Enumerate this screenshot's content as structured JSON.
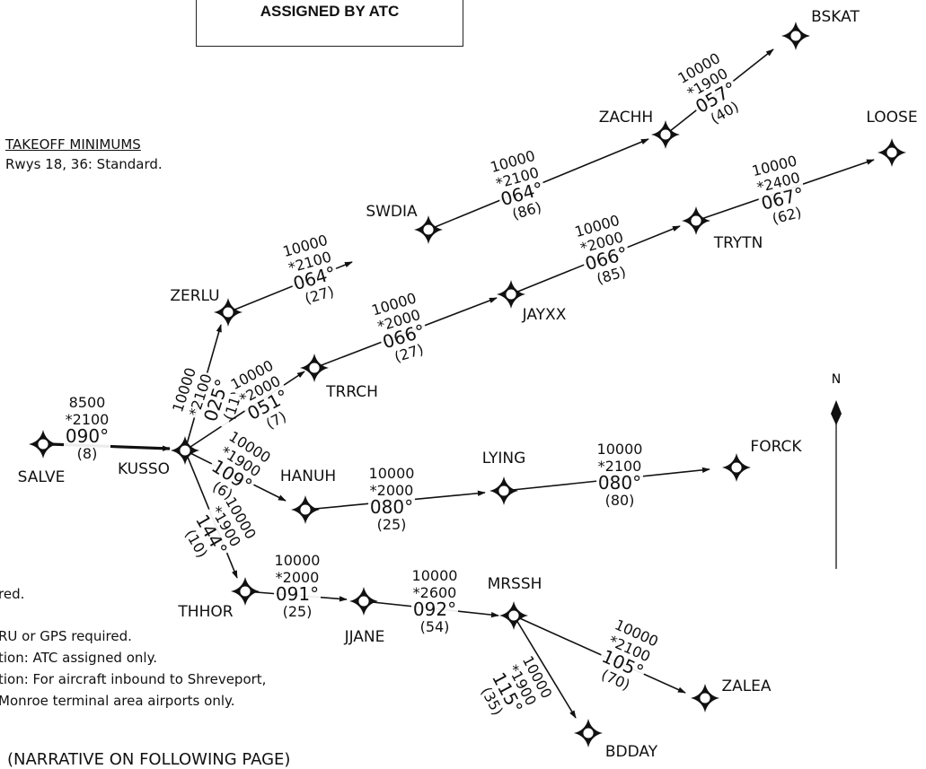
{
  "atc_box": {
    "text": "ASSIGNED BY ATC"
  },
  "takeoff": {
    "heading": "TAKEOFF MINIMUMS",
    "text": "Rwys 18, 36:  Standard."
  },
  "notes": [
    "red.",
    "RU or GPS required.",
    "tion:  ATC assigned only.",
    "tion:  For aircraft inbound to Shreveport,",
    "Monroe terminal area airports only."
  ],
  "narrative": "(NARRATIVE ON FOLLOWING PAGE)",
  "north": "N",
  "fixes": [
    {
      "name": "SALVE"
    },
    {
      "name": "KUSSO"
    },
    {
      "name": "ZERLU"
    },
    {
      "name": "SWDIA"
    },
    {
      "name": "ZACHH"
    },
    {
      "name": "BSKAT"
    },
    {
      "name": "TRRCH"
    },
    {
      "name": "JAYXX"
    },
    {
      "name": "TRYTN"
    },
    {
      "name": "LOOSE"
    },
    {
      "name": "HANUH"
    },
    {
      "name": "LYING"
    },
    {
      "name": "FORCK"
    },
    {
      "name": "THHOR"
    },
    {
      "name": "JJANE"
    },
    {
      "name": "MRSSH"
    },
    {
      "name": "ZALEA"
    },
    {
      "name": "BDDAY"
    }
  ],
  "segments": [
    {
      "from": "SALVE",
      "to": "KUSSO",
      "mea": "8500",
      "moca": "*2100",
      "course": "090°",
      "dist": "(8)"
    },
    {
      "from": "KUSSO",
      "to": "ZERLU",
      "mea": "10000",
      "moca": "*2100",
      "course": "025°",
      "dist": "(11)"
    },
    {
      "from": "ZERLU",
      "to": "SWDIA",
      "mea": "10000",
      "moca": "*2100",
      "course": "064°",
      "dist": "(27)"
    },
    {
      "from": "SWDIA",
      "to": "ZACHH",
      "mea": "10000",
      "moca": "*2100",
      "course": "064°",
      "dist": "(86)"
    },
    {
      "from": "ZACHH",
      "to": "BSKAT",
      "mea": "10000",
      "moca": "*1900",
      "course": "057°",
      "dist": "(40)"
    },
    {
      "from": "KUSSO",
      "to": "TRRCH",
      "mea": "10000",
      "moca": "*2000",
      "course": "051°",
      "dist": "(7)"
    },
    {
      "from": "TRRCH",
      "to": "JAYXX",
      "mea": "10000",
      "moca": "*2000",
      "course": "066°",
      "dist": "(27)"
    },
    {
      "from": "JAYXX",
      "to": "TRYTN",
      "mea": "10000",
      "moca": "*2000",
      "course": "066°",
      "dist": "(85)"
    },
    {
      "from": "TRYTN",
      "to": "LOOSE",
      "mea": "10000",
      "moca": "*2400",
      "course": "067°",
      "dist": "(62)"
    },
    {
      "from": "KUSSO",
      "to": "HANUH",
      "mea": "10000",
      "moca": "*1900",
      "course": "109°",
      "dist": "(6)"
    },
    {
      "from": "HANUH",
      "to": "LYING",
      "mea": "10000",
      "moca": "*2000",
      "course": "080°",
      "dist": "(25)"
    },
    {
      "from": "LYING",
      "to": "FORCK",
      "mea": "10000",
      "moca": "*2100",
      "course": "080°",
      "dist": "(80)"
    },
    {
      "from": "KUSSO",
      "to": "THHOR",
      "mea": "10000",
      "moca": "*1900",
      "course": "144°",
      "dist": "(10)"
    },
    {
      "from": "THHOR",
      "to": "JJANE",
      "mea": "10000",
      "moca": "*2000",
      "course": "091°",
      "dist": "(25)"
    },
    {
      "from": "JJANE",
      "to": "MRSSH",
      "mea": "10000",
      "moca": "*2600",
      "course": "092°",
      "dist": "(54)"
    },
    {
      "from": "MRSSH",
      "to": "ZALEA",
      "mea": "10000",
      "moca": "*2100",
      "course": "105°",
      "dist": "(70)"
    },
    {
      "from": "MRSSH",
      "to": "BDDAY",
      "mea": "10000",
      "moca": "*1900",
      "course": "115°",
      "dist": "(35)"
    }
  ]
}
